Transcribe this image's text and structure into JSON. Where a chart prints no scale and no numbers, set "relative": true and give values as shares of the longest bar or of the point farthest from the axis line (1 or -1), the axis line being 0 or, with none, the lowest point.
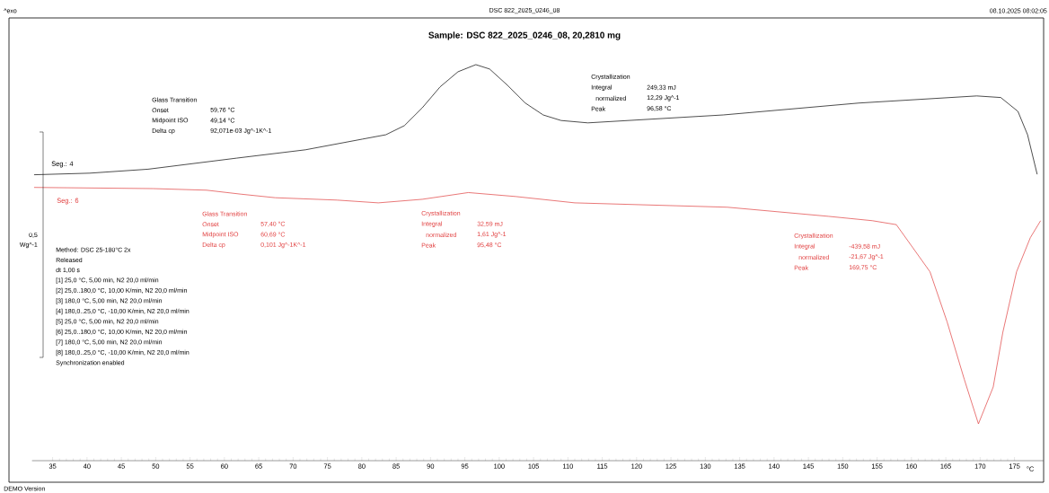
{
  "chart_data": {
    "type": "line",
    "title": "Sample: DSC 822_2025_0246_08, 20,2810 mg",
    "xlabel": "°C",
    "relative": true,
    "xlim": [
      32,
      179.2
    ],
    "xticks": [
      35,
      40,
      45,
      50,
      55,
      60,
      65,
      70,
      75,
      80,
      85,
      90,
      95,
      100,
      105,
      110,
      115,
      120,
      125,
      130,
      135,
      140,
      145,
      150,
      155,
      160,
      165,
      170,
      175
    ],
    "series": [
      {
        "name": "Seg.: 4",
        "color": "#000000",
        "x": [
          32.3,
          40.4,
          48.9,
          61.8,
          71.8,
          80.1,
          83.5,
          86.2,
          88.8,
          91.4,
          94.0,
          96.6,
          98.6,
          101.2,
          103.8,
          106.4,
          109.0,
          112.9,
          132.6,
          152.3,
          169.5,
          173.0,
          175.5,
          176.9,
          178.3
        ],
        "values": [
          0.722,
          0.726,
          0.736,
          0.764,
          0.785,
          0.812,
          0.823,
          0.846,
          0.891,
          0.944,
          0.982,
          1.0,
          0.989,
          0.948,
          0.903,
          0.873,
          0.859,
          0.853,
          0.873,
          0.903,
          0.921,
          0.917,
          0.882,
          0.823,
          0.723
        ]
      },
      {
        "name": "Seg.: 6",
        "color": "#e03c3c",
        "x": [
          32.3,
          49.6,
          57.4,
          62.4,
          67.4,
          76.4,
          82.4,
          88.8,
          95.5,
          102.4,
          111.0,
          133.2,
          147.9,
          154.3,
          157.8,
          162.7,
          165.2,
          167.7,
          169.75,
          171.9,
          173.3,
          175.3,
          177.3,
          178.8
        ],
        "values": [
          0.69,
          0.687,
          0.683,
          0.673,
          0.664,
          0.658,
          0.651,
          0.66,
          0.677,
          0.667,
          0.651,
          0.64,
          0.617,
          0.606,
          0.596,
          0.477,
          0.35,
          0.205,
          0.093,
          0.186,
          0.324,
          0.477,
          0.563,
          0.606
        ]
      }
    ],
    "annotations": [
      "^exo",
      "DSC 822_2025_0246_08",
      "08.10.2025 08:02:05",
      "DEMO Version",
      "Glass Transition",
      "Onset",
      "59,76 °C",
      "Midpoint ISO",
      "49,14 °C",
      "Delta cp",
      "92,071e-03 Jg^-1K^-1",
      "Crystallization",
      "Integral",
      "249,33 mJ",
      "normalized",
      "12,29 Jg^-1",
      "Peak",
      "96,58 °C",
      "Glass Transition",
      "Onset",
      "57,40 °C",
      "Midpoint ISO",
      "60,69 °C",
      "Delta cp",
      "0,101 Jg^-1K^-1",
      "Crystallization",
      "Integral",
      "32,59 mJ",
      "normalized",
      "1,61 Jg^-1",
      "Peak",
      "95,48 °C",
      "Crystallization",
      "Integral",
      "-439,58 mJ",
      "normalized",
      "-21,67 Jg^-1",
      "Peak",
      "169,75 °C",
      "0,5",
      "Wg^-1",
      "Method: DSC 25-180°C 2x",
      "Released",
      "dt 1,00 s",
      "[1] 25,0 °C, 5,00 min, N2 20,0 ml/min",
      "[2] 25,0..180,0 °C, 10,00 K/min, N2 20,0 ml/min",
      "[3] 180,0 °C, 5,00 min, N2 20,0 ml/min",
      "[4] 180,0..25,0 °C, -10,00 K/min, N2 20,0 ml/min",
      "[5] 25,0 °C, 5,00 min, N2 20,0 ml/min",
      "[6] 25,0..180,0 °C, 10,00 K/min, N2 20,0 ml/min",
      "[7] 180,0 °C, 5,00 min, N2 20,0 ml/min",
      "[8] 180,0..25,0 °C, -10,00 K/min, N2 20,0 ml/min",
      "Synchronization enabled"
    ]
  }
}
